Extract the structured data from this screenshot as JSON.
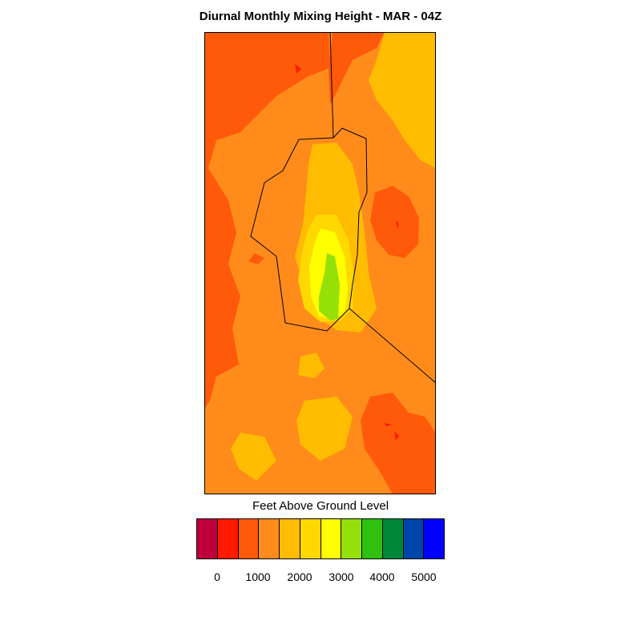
{
  "title": "Diurnal Monthly Mixing Height - MAR - 04Z",
  "legend": {
    "title": "Feet Above Ground Level",
    "colors": [
      "#c0003a",
      "#ff1a00",
      "#ff5a0a",
      "#ff8c1a",
      "#ffbc00",
      "#ffd800",
      "#ffff00",
      "#96e00a",
      "#2fc010",
      "#00883a",
      "#0046aa",
      "#0000ff"
    ],
    "tick_labels": [
      "0",
      "1000",
      "2000",
      "3000",
      "4000",
      "5000"
    ]
  },
  "map": {
    "background_color": "#ff8c1a",
    "colors": {
      "level_0": "#ff5a0a",
      "level_2": "#ffbc00",
      "level_3": "#ffd800",
      "level_4": "#ffff00",
      "level_5": "#96e00a",
      "spot": "#ff1a00"
    }
  }
}
